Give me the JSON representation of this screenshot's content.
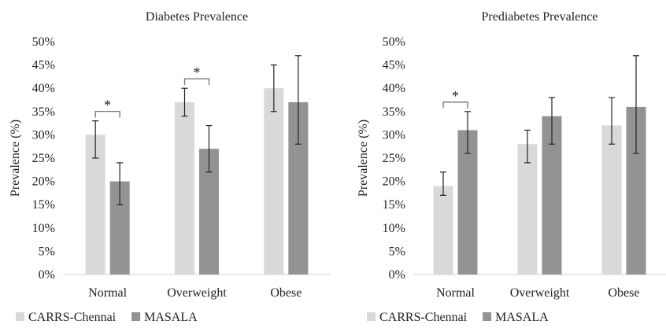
{
  "chart_data": [
    {
      "type": "bar",
      "title": "Diabetes Prevalence",
      "xlabel": "",
      "ylabel": "Prevalence (%)",
      "ylim": [
        0,
        50
      ],
      "yticks": [
        "0%",
        "5%",
        "10%",
        "15%",
        "20%",
        "25%",
        "30%",
        "35%",
        "40%",
        "45%",
        "50%"
      ],
      "categories": [
        "Normal",
        "Overweight",
        "Obese"
      ],
      "series": [
        {
          "name": "CARRS-Chennai",
          "color": "#d9d9d9",
          "values": [
            30,
            37,
            40
          ],
          "err_low": [
            25,
            34,
            35
          ],
          "err_high": [
            33,
            40,
            45
          ]
        },
        {
          "name": "MASALA",
          "color": "#939393",
          "values": [
            20,
            27,
            37
          ],
          "err_low": [
            15,
            22,
            28
          ],
          "err_high": [
            24,
            32,
            47
          ]
        }
      ],
      "annotations": [
        {
          "category": "Normal",
          "label": "*"
        },
        {
          "category": "Overweight",
          "label": "*"
        }
      ],
      "legend": "bottom-left"
    },
    {
      "type": "bar",
      "title": "Prediabetes Prevalence",
      "xlabel": "",
      "ylabel": "Prevalence (%)",
      "ylim": [
        0,
        50
      ],
      "yticks": [
        "0%",
        "5%",
        "10%",
        "15%",
        "20%",
        "25%",
        "30%",
        "35%",
        "40%",
        "45%",
        "50%"
      ],
      "categories": [
        "Normal",
        "Overweight",
        "Obese"
      ],
      "series": [
        {
          "name": "CARRS-Chennai",
          "color": "#d9d9d9",
          "values": [
            19,
            28,
            32
          ],
          "err_low": [
            17,
            24,
            28
          ],
          "err_high": [
            22,
            31,
            38
          ]
        },
        {
          "name": "MASALA",
          "color": "#939393",
          "values": [
            31,
            34,
            36
          ],
          "err_low": [
            26,
            28,
            26
          ],
          "err_high": [
            35,
            38,
            47
          ]
        }
      ],
      "annotations": [
        {
          "category": "Normal",
          "label": "*"
        }
      ],
      "legend": "bottom-left"
    }
  ]
}
